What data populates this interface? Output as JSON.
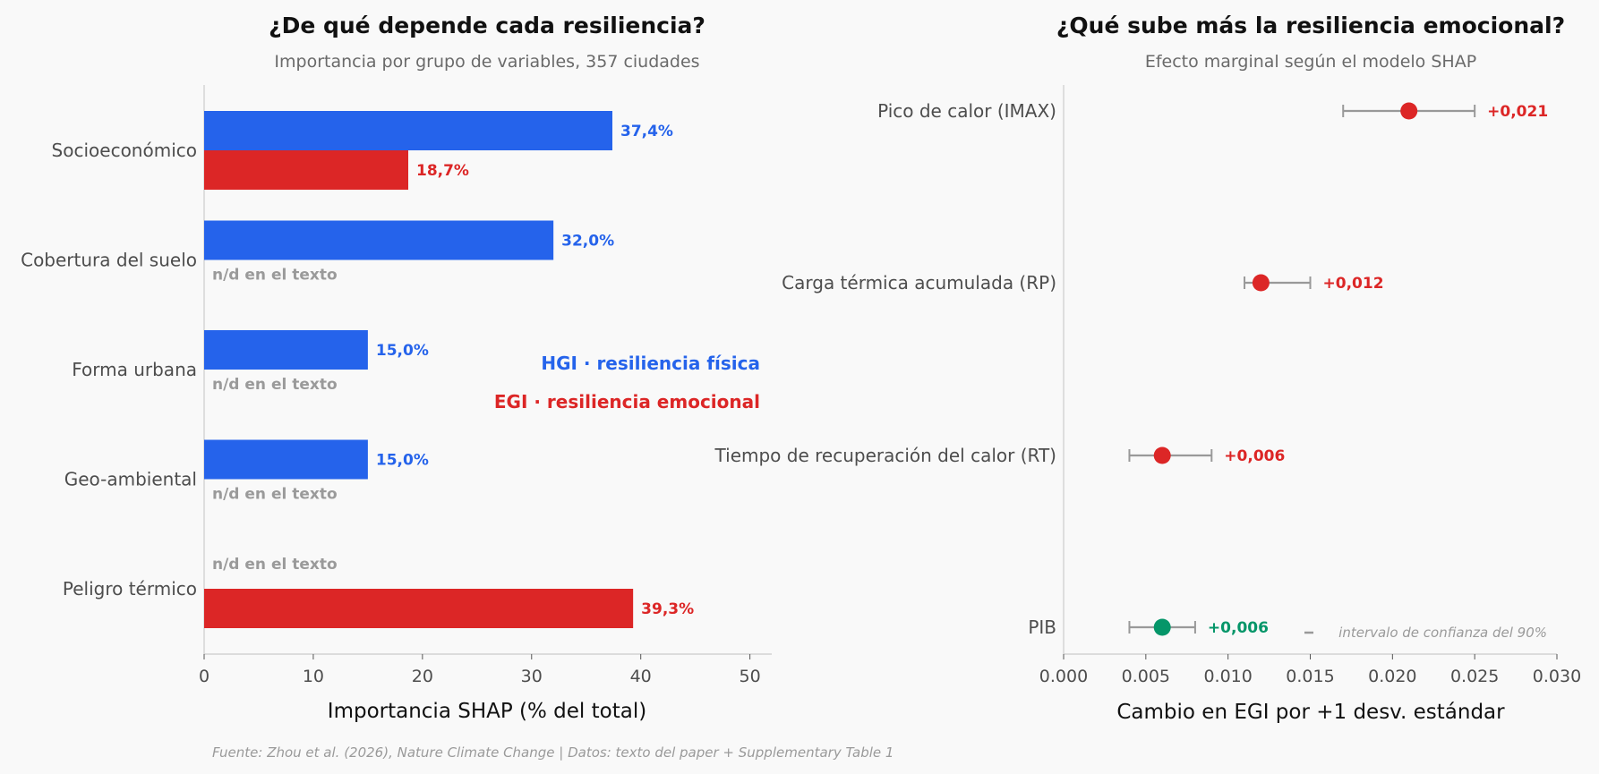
{
  "chart_data": [
    {
      "type": "bar",
      "title": "¿De qué depende cada resiliencia?",
      "subtitle": "Importancia por grupo de variables, 357 ciudades",
      "xlabel": "Importancia SHAP (% del total)",
      "xlim": [
        0,
        52
      ],
      "xticks": [
        0,
        10,
        20,
        30,
        40,
        50
      ],
      "categories": [
        "Socioeconómico",
        "Cobertura del suelo",
        "Forma urbana",
        "Geo-ambiental",
        "Peligro térmico"
      ],
      "series": [
        {
          "name": "HGI · resiliencia física",
          "color": "#2563eb",
          "values": [
            37.4,
            32.0,
            15.0,
            15.0,
            null
          ],
          "labels": [
            "37,4%",
            "32,0%",
            "15,0%",
            "15,0%",
            "n/d en el texto"
          ]
        },
        {
          "name": "EGI · resiliencia emocional",
          "color": "#dc2626",
          "values": [
            18.7,
            null,
            null,
            null,
            39.3
          ],
          "labels": [
            "18,7%",
            "n/d en el texto",
            "n/d en el texto",
            "n/d en el texto",
            "39,3%"
          ]
        }
      ],
      "legend": "right, inside axes",
      "grid": false
    },
    {
      "type": "scatter",
      "subtype": "point with error bars",
      "title": "¿Qué sube más la resiliencia emocional?",
      "subtitle": "Efecto marginal según el modelo SHAP",
      "xlabel": "Cambio en EGI por +1 desv. estándar",
      "xlim": [
        0.0,
        0.03
      ],
      "xticks": [
        "0.000",
        "0.005",
        "0.010",
        "0.015",
        "0.020",
        "0.025",
        "0.030"
      ],
      "points": [
        {
          "category": "Pico de calor (IMAX)",
          "value": 0.021,
          "ci_low": 0.017,
          "ci_high": 0.025,
          "label": "+0,021",
          "color": "#dc2626"
        },
        {
          "category": "Carga térmica acumulada (RP)",
          "value": 0.012,
          "ci_low": 0.011,
          "ci_high": 0.015,
          "label": "+0,012",
          "color": "#dc2626"
        },
        {
          "category": "Tiempo de recuperación del calor (RT)",
          "value": 0.006,
          "ci_low": 0.004,
          "ci_high": 0.009,
          "label": "+0,006",
          "color": "#dc2626"
        },
        {
          "category": "PIB",
          "value": 0.006,
          "ci_low": 0.004,
          "ci_high": 0.008,
          "label": "+0,006",
          "color": "#059669"
        }
      ],
      "annotation": "intervalo de confianza del 90%",
      "grid": false
    }
  ],
  "source": "Fuente: Zhou et al. (2026), Nature Climate Change | Datos: texto del paper + Supplementary Table 1",
  "colors": {
    "axis": "#cccccc",
    "errorbar": "#999999",
    "na_text": "#9a9a9a"
  }
}
